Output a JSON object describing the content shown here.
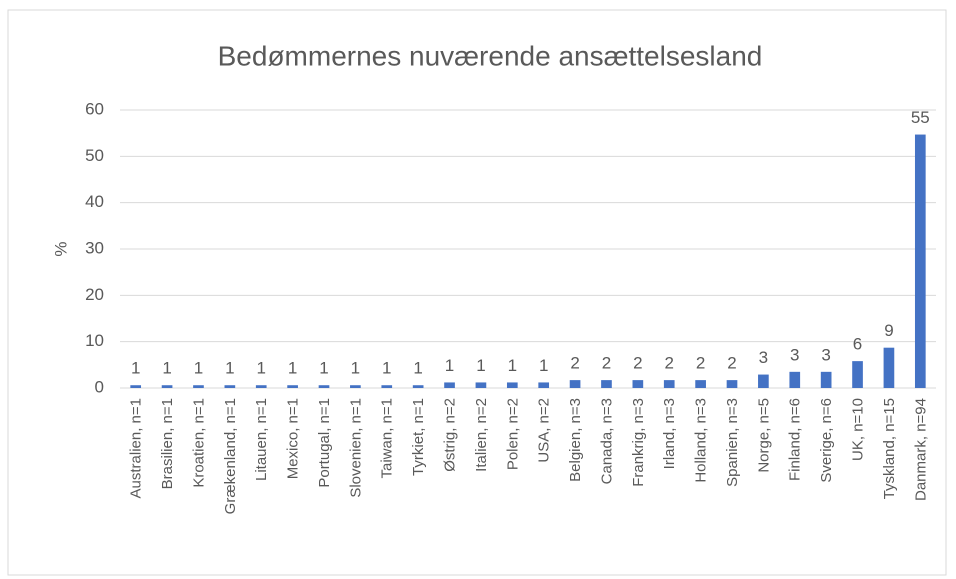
{
  "chart_data": {
    "type": "bar",
    "title": "Bedømmernes nuværende ansættelsesland",
    "y_label": "%",
    "categories": [
      "Australien, n=1",
      "Brasilien, n=1",
      "Kroatien, n=1",
      "Grækenland, n=1",
      "Litauen, n=1",
      "Mexico, n=1",
      "Portugal, n=1",
      "Slovenien, n=1",
      "Taiwan, n=1",
      "Tyrkiet, n=1",
      "Østrig, n=2",
      "Italien, n=2",
      "Polen, n=2",
      "USA, n=2",
      "Belgien, n=3",
      "Canada, n=3",
      "Frankrig, n=3",
      "Irland, n=3",
      "Holland, n=3",
      "Spanien, n=3",
      "Norge, n=5",
      "Finland, n=6",
      "Sverige, n=6",
      "UK, n=10",
      "Tyskland, n=15",
      "Danmark, n=94"
    ],
    "values": [
      0.6,
      0.6,
      0.6,
      0.6,
      0.6,
      0.6,
      0.6,
      0.6,
      0.6,
      0.6,
      1.2,
      1.2,
      1.2,
      1.2,
      1.7,
      1.7,
      1.7,
      1.7,
      1.7,
      1.7,
      2.9,
      3.49,
      3.49,
      5.8,
      8.7,
      54.7
    ],
    "value_labels": [
      "1",
      "1",
      "1",
      "1",
      "1",
      "1",
      "1",
      "1",
      "1",
      "1",
      "1",
      "1",
      "1",
      "1",
      "2",
      "2",
      "2",
      "2",
      "2",
      "2",
      "3",
      "3",
      "3",
      "6",
      "9",
      "55"
    ],
    "color": "#4472c4",
    "ylim": [
      0,
      60
    ],
    "yticks": [
      0,
      10,
      20,
      30,
      40,
      50,
      60
    ],
    "grid": true
  }
}
